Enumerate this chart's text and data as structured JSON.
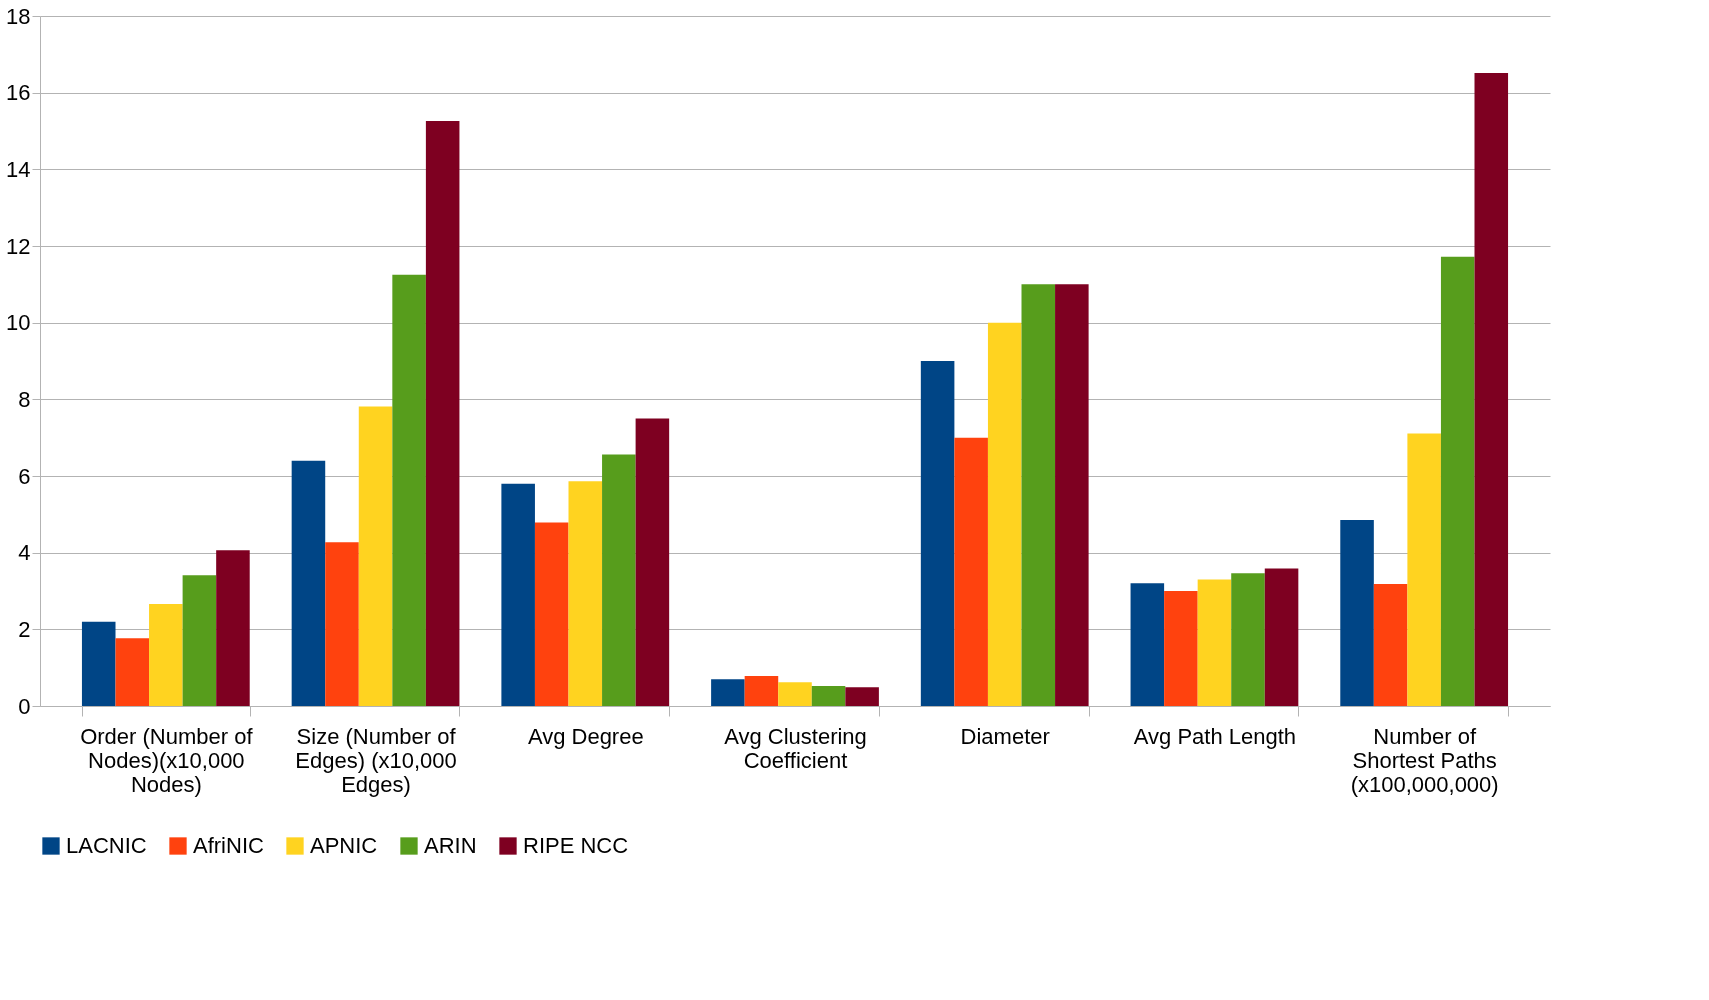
{
  "chart_data": {
    "type": "bar",
    "categories": [
      "Order (Number of Nodes)(x10,000 Nodes)",
      "Size (Number of Edges) (x10,000 Edges)",
      "Avg Degree",
      "Avg Clustering Coefficient",
      "Diameter",
      "Avg Path Length",
      "Number of Shortest Paths (x100,000,000)"
    ],
    "series": [
      {
        "name": "LACNIC",
        "color": "#004586",
        "values": [
          2.2,
          6.4,
          5.8,
          0.7,
          9,
          3.2,
          4.85
        ]
      },
      {
        "name": "AfriNIC",
        "color": "#ff420e",
        "values": [
          1.77,
          4.27,
          4.79,
          0.78,
          7,
          3.0,
          3.18
        ]
      },
      {
        "name": "APNIC",
        "color": "#ffd320",
        "values": [
          2.66,
          7.81,
          5.86,
          0.62,
          10,
          3.3,
          7.11
        ]
      },
      {
        "name": "ARIN",
        "color": "#579d1c",
        "values": [
          3.41,
          11.25,
          6.56,
          0.52,
          11,
          3.46,
          11.72
        ]
      },
      {
        "name": "RIPE NCC",
        "color": "#7e0021",
        "values": [
          4.06,
          15.26,
          7.5,
          0.49,
          11,
          3.59,
          16.51
        ]
      }
    ],
    "ylim": [
      0,
      18
    ],
    "yticks": [
      0,
      2,
      4,
      6,
      8,
      10,
      12,
      14,
      16,
      18
    ],
    "grid": "y",
    "legend": "bottom"
  }
}
